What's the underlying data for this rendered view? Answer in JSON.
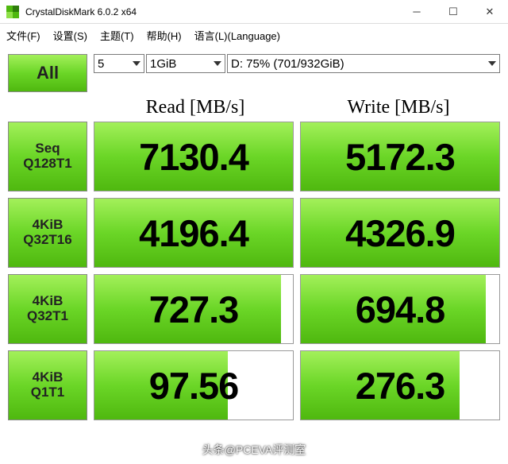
{
  "window": {
    "title": "CrystalDiskMark 6.0.2 x64",
    "icon_colors": {
      "tl": "#4fb80f",
      "tr": "#2e7d0b",
      "bl": "#8fe048",
      "br": "#4fb80f"
    }
  },
  "menu": {
    "file": "文件(F)",
    "settings": "设置(S)",
    "theme": "主题(T)",
    "help": "帮助(H)",
    "language": "语言(L)(Language)"
  },
  "controls": {
    "all_label": "All",
    "loops": "5",
    "testsize": "1GiB",
    "drive": "D: 75% (701/932GiB)"
  },
  "headers": {
    "read": "Read [MB/s]",
    "write": "Write [MB/s]"
  },
  "tests": [
    {
      "line1": "Seq",
      "line2": "Q128T1",
      "read": "7130.4",
      "read_pct": 100,
      "write": "5172.3",
      "write_pct": 100
    },
    {
      "line1": "4KiB",
      "line2": "Q32T16",
      "read": "4196.4",
      "read_pct": 100,
      "write": "4326.9",
      "write_pct": 100
    },
    {
      "line1": "4KiB",
      "line2": "Q32T1",
      "read": "727.3",
      "read_pct": 94,
      "write": "694.8",
      "write_pct": 93
    },
    {
      "line1": "4KiB",
      "line2": "Q1T1",
      "read": "97.56",
      "read_pct": 67,
      "write": "276.3",
      "write_pct": 80
    }
  ],
  "watermark": "头条@PCEVA评测室",
  "colors": {
    "green_gradient_top": "#a3f05a",
    "green_gradient_mid": "#6bd627",
    "green_gradient_bot": "#4fb80f"
  }
}
